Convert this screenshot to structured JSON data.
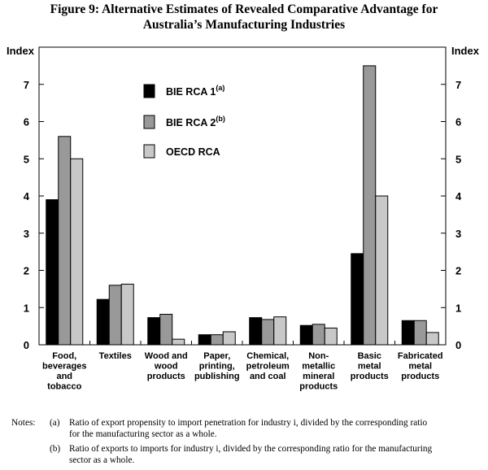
{
  "chart_data": {
    "type": "bar",
    "title_lines": [
      "Figure 9: Alternative Estimates of Revealed Comparative Advantage for",
      "Australia’s Manufacturing Industries"
    ],
    "ylabel_left": "Index",
    "ylabel_right": "Index",
    "ylim": [
      0,
      8
    ],
    "yticks": [
      "0",
      "1",
      "2",
      "3",
      "4",
      "5",
      "6",
      "7"
    ],
    "categories": [
      [
        "Food,",
        "beverages",
        "and",
        "tobacco"
      ],
      [
        "Textiles"
      ],
      [
        "Wood and",
        "wood",
        "products"
      ],
      [
        "Paper,",
        "printing,",
        "publishing"
      ],
      [
        "Chemical,",
        "petroleum",
        "and coal"
      ],
      [
        "Non-",
        "metallic",
        "mineral",
        "products"
      ],
      [
        "Basic",
        "metal",
        "products"
      ],
      [
        "Fabricated",
        "metal",
        "products"
      ]
    ],
    "series": [
      {
        "name": "BIE RCA 1",
        "superscript": "(a)",
        "color": "#000000",
        "values": [
          3.9,
          1.22,
          0.73,
          0.27,
          0.73,
          0.52,
          2.45,
          0.65
        ]
      },
      {
        "name": "BIE RCA 2",
        "superscript": "(b)",
        "color": "#999999",
        "values": [
          5.6,
          1.6,
          0.82,
          0.27,
          0.68,
          0.55,
          7.5,
          0.65
        ]
      },
      {
        "name": "OECD RCA",
        "superscript": "",
        "color": "#c8c8c8",
        "values": [
          5.0,
          1.63,
          0.15,
          0.35,
          0.75,
          0.45,
          4.0,
          0.33
        ]
      }
    ],
    "legend_position": "top-left"
  },
  "notes": {
    "prefix": "Notes:",
    "items": [
      {
        "letter": "(a)",
        "lines": [
          "Ratio of export propensity to import penetration for industry i, divided by the corresponding ratio",
          "for the manufacturing sector as a whole."
        ]
      },
      {
        "letter": "(b)",
        "lines": [
          "Ratio of exports to imports for industry i, divided by the corresponding ratio for the manufacturing",
          "sector as a whole."
        ]
      }
    ]
  }
}
